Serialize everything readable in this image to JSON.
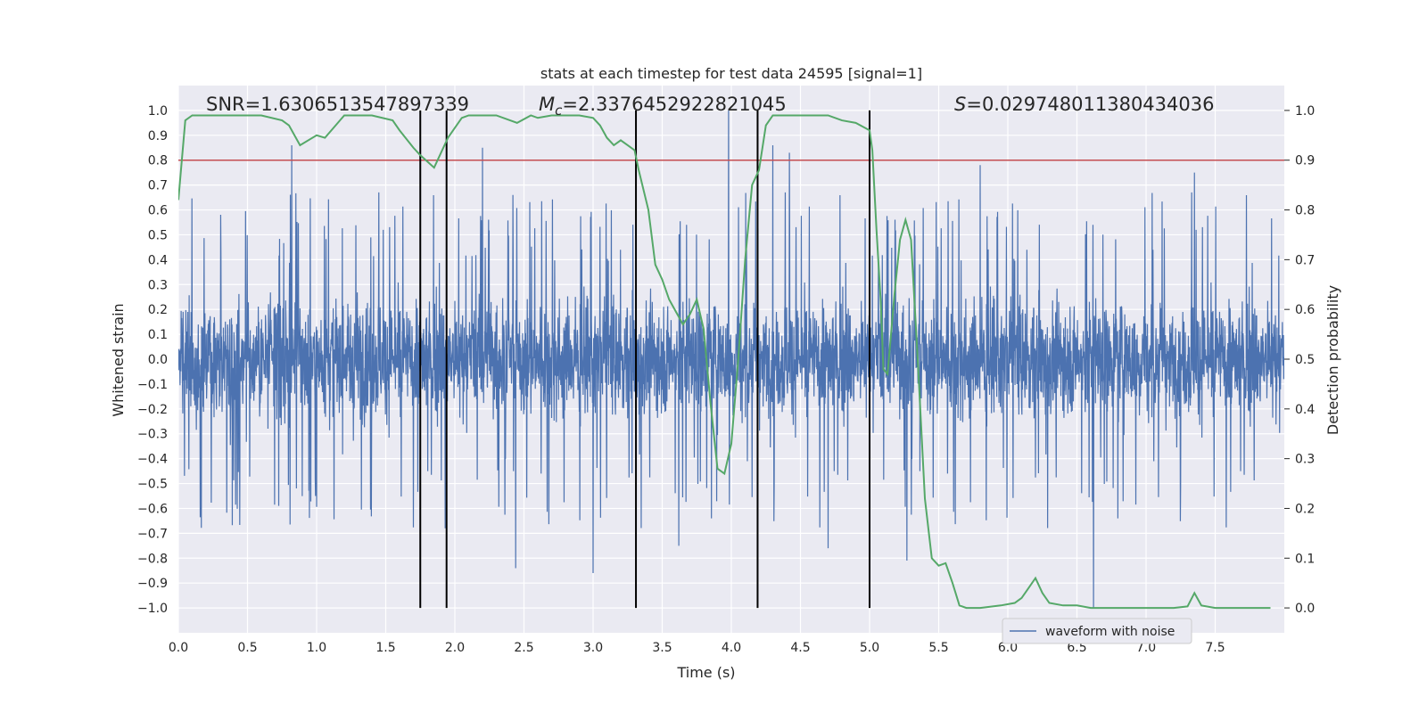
{
  "chart_data": {
    "type": "line",
    "title": "stats at each timestep for test data 24595 [signal=1]",
    "xlabel": "Time (s)",
    "ylabel": "Whitened strain",
    "y2label": "Detection probability",
    "xlim": [
      0.0,
      8.0
    ],
    "ylim": [
      -1.1,
      1.1
    ],
    "y2lim": [
      -0.05,
      1.05
    ],
    "xticks": [
      "0.0",
      "0.5",
      "1.0",
      "1.5",
      "2.0",
      "2.5",
      "3.0",
      "3.5",
      "4.0",
      "4.5",
      "5.0",
      "5.5",
      "6.0",
      "6.5",
      "7.0",
      "7.5"
    ],
    "yticks": [
      "1.0",
      "0.9",
      "0.8",
      "0.7",
      "0.6",
      "0.5",
      "0.4",
      "0.3",
      "0.2",
      "0.1",
      "0.0",
      "−0.1",
      "−0.2",
      "−0.3",
      "−0.4",
      "−0.5",
      "−0.6",
      "−0.7",
      "−0.8",
      "−0.9",
      "−1.0"
    ],
    "y2ticks": [
      "1.0",
      "0.9",
      "0.8",
      "0.7",
      "0.6",
      "0.5",
      "0.4",
      "0.3",
      "0.2",
      "0.1",
      "0.0"
    ],
    "grid": true,
    "legend": {
      "placement": "lower-right",
      "entries": [
        "waveform with noise"
      ]
    },
    "annotations": {
      "snr": "SNR=1.6306513547897339",
      "mc_symbol": "M",
      "mc_sub": "c",
      "mc_value": "=2.3376452922821045",
      "s_symbol": "S",
      "s_value": "=0.029748011380434036"
    },
    "threshold_y": 0.9,
    "vlines_x": [
      1.75,
      1.94,
      3.31,
      4.19,
      5.0
    ],
    "waveform": {
      "name": "waveform with noise",
      "duration": 8.0,
      "band_envelope": 0.38,
      "notable_spikes": [
        {
          "t": 0.82,
          "v": 0.86
        },
        {
          "t": 1.75,
          "v": 0.7
        },
        {
          "t": 1.93,
          "v": -0.68
        },
        {
          "t": 2.2,
          "v": 0.85
        },
        {
          "t": 2.42,
          "v": 0.66
        },
        {
          "t": 2.44,
          "v": -0.84
        },
        {
          "t": 3.0,
          "v": -0.86
        },
        {
          "t": 3.62,
          "v": -0.75
        },
        {
          "t": 3.98,
          "v": 1.0
        },
        {
          "t": 4.3,
          "v": 0.86
        },
        {
          "t": 4.42,
          "v": 0.83
        },
        {
          "t": 4.7,
          "v": -0.76
        },
        {
          "t": 5.27,
          "v": -0.81
        },
        {
          "t": 5.8,
          "v": 0.78
        },
        {
          "t": 6.62,
          "v": -1.0
        },
        {
          "t": 7.35,
          "v": 0.75
        }
      ]
    },
    "detection_probability": {
      "x": [
        0.0,
        0.05,
        0.1,
        0.2,
        0.4,
        0.6,
        0.75,
        0.8,
        0.88,
        1.0,
        1.06,
        1.2,
        1.4,
        1.55,
        1.6,
        1.7,
        1.75,
        1.85,
        1.95,
        2.0,
        2.05,
        2.1,
        2.3,
        2.4,
        2.45,
        2.55,
        2.6,
        2.7,
        2.9,
        3.0,
        3.05,
        3.1,
        3.15,
        3.2,
        3.25,
        3.3,
        3.33,
        3.4,
        3.45,
        3.5,
        3.55,
        3.6,
        3.65,
        3.7,
        3.75,
        3.8,
        3.85,
        3.9,
        3.95,
        4.0,
        4.05,
        4.1,
        4.15,
        4.2,
        4.25,
        4.3,
        4.35,
        4.4,
        4.6,
        4.7,
        4.8,
        4.9,
        5.0,
        5.02,
        5.05,
        5.08,
        5.1,
        5.13,
        5.18,
        5.22,
        5.26,
        5.3,
        5.35,
        5.4,
        5.45,
        5.5,
        5.55,
        5.6,
        5.65,
        5.7,
        5.8,
        5.95,
        6.05,
        6.1,
        6.15,
        6.2,
        6.25,
        6.3,
        6.4,
        6.5,
        6.6,
        7.0,
        7.2,
        7.3,
        7.35,
        7.4,
        7.5,
        7.9
      ],
      "y": [
        0.82,
        0.98,
        0.99,
        0.99,
        0.99,
        0.99,
        0.98,
        0.97,
        0.93,
        0.95,
        0.945,
        0.99,
        0.99,
        0.98,
        0.96,
        0.925,
        0.91,
        0.885,
        0.945,
        0.965,
        0.985,
        0.99,
        0.99,
        0.98,
        0.975,
        0.99,
        0.985,
        0.99,
        0.99,
        0.985,
        0.97,
        0.945,
        0.93,
        0.94,
        0.93,
        0.92,
        0.88,
        0.8,
        0.69,
        0.66,
        0.62,
        0.595,
        0.57,
        0.59,
        0.62,
        0.56,
        0.41,
        0.28,
        0.27,
        0.33,
        0.5,
        0.7,
        0.85,
        0.88,
        0.97,
        0.99,
        0.99,
        0.99,
        0.99,
        0.99,
        0.98,
        0.975,
        0.96,
        0.92,
        0.76,
        0.62,
        0.48,
        0.47,
        0.63,
        0.74,
        0.78,
        0.74,
        0.49,
        0.22,
        0.1,
        0.085,
        0.09,
        0.05,
        0.005,
        0.0,
        0.0,
        0.005,
        0.01,
        0.02,
        0.04,
        0.06,
        0.03,
        0.01,
        0.005,
        0.005,
        0.0,
        0.0,
        0.0,
        0.003,
        0.03,
        0.005,
        0.0,
        0.0
      ]
    },
    "colors": {
      "plot_bg": "#eaeaf2",
      "grid": "#ffffff",
      "waveform": "#4c72b0",
      "probability": "#55a868",
      "threshold": "#c44e52",
      "vline": "#000000"
    }
  }
}
